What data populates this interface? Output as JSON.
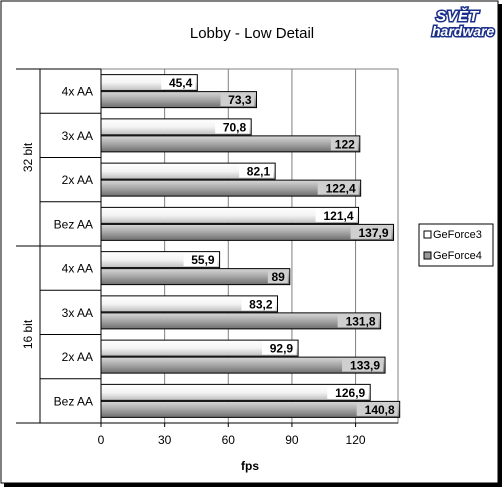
{
  "logo": {
    "line1": "SVĚT",
    "line2": "hardware"
  },
  "chart_data": {
    "type": "bar",
    "orientation": "horizontal",
    "title": "Lobby - Low Detail",
    "xlabel": "fps",
    "xlim": [
      0,
      140
    ],
    "xticks": [
      0,
      30,
      60,
      90,
      120
    ],
    "grid": true,
    "legend": "right",
    "groups": [
      {
        "label": "32 bit",
        "categories": [
          "4x AA",
          "3x AA",
          "2x AA",
          "Bez AA"
        ]
      },
      {
        "label": "16 bit",
        "categories": [
          "4x AA",
          "3x AA",
          "2x AA",
          "Bez AA"
        ]
      }
    ],
    "categories": [
      "4x AA",
      "3x AA",
      "2x AA",
      "Bez AA",
      "4x AA",
      "3x AA",
      "2x AA",
      "Bez AA"
    ],
    "series": [
      {
        "name": "GeForce3",
        "values": [
          45.4,
          70.8,
          82.1,
          121.4,
          55.9,
          83.2,
          92.9,
          126.9
        ],
        "labels": [
          "45,4",
          "70,8",
          "82,1",
          "121,4",
          "55,9",
          "83,2",
          "92,9",
          "126,9"
        ]
      },
      {
        "name": "GeForce4",
        "values": [
          73.3,
          122,
          122.4,
          137.9,
          89,
          131.8,
          133.9,
          140.8
        ],
        "labels": [
          "73,3",
          "122",
          "122,4",
          "137,9",
          "89",
          "131,8",
          "133,9",
          "140,8"
        ]
      }
    ]
  }
}
